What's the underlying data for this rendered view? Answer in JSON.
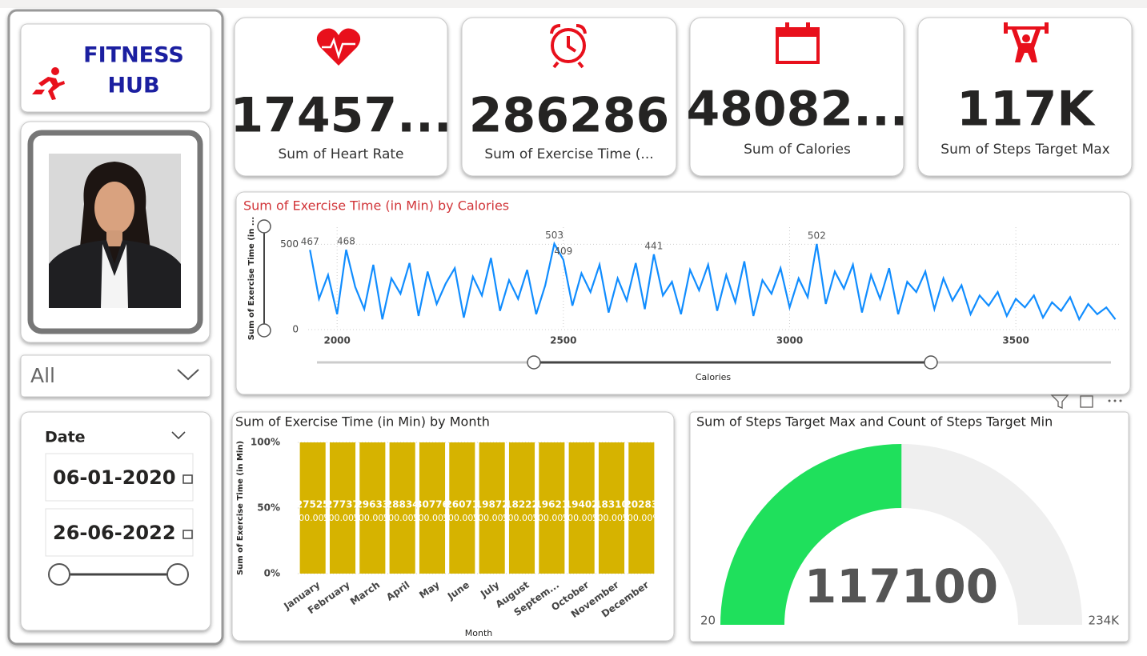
{
  "brand": {
    "line1": "FITNESS",
    "line2": "HUB"
  },
  "filter": {
    "selected": "All"
  },
  "date_slicer": {
    "label": "Date",
    "start": "06-01-2020",
    "end": "26-06-2022"
  },
  "kpis": [
    {
      "value": "17457...",
      "label": "Sum of Heart Rate"
    },
    {
      "value": "286286",
      "label": "Sum of Exercise Time (..."
    },
    {
      "value": "48082...",
      "label": "Sum of Calories"
    },
    {
      "value": "117K",
      "label": "Sum of Steps Target Max"
    }
  ],
  "chart_data": [
    {
      "type": "line",
      "title": "Sum of Exercise Time (in Min) by Calories",
      "x_label": "Calories",
      "y_label": "Sum of Exercise Time (in ...",
      "x": [
        1940,
        1960,
        1980,
        2000,
        2020,
        2040,
        2060,
        2080,
        2100,
        2120,
        2140,
        2160,
        2180,
        2200,
        2220,
        2240,
        2260,
        2280,
        2300,
        2320,
        2340,
        2360,
        2380,
        2400,
        2420,
        2440,
        2460,
        2480,
        2500,
        2520,
        2540,
        2560,
        2580,
        2600,
        2620,
        2640,
        2660,
        2680,
        2700,
        2720,
        2740,
        2760,
        2780,
        2800,
        2820,
        2840,
        2860,
        2880,
        2900,
        2920,
        2940,
        2960,
        2980,
        3000,
        3020,
        3040,
        3060,
        3080,
        3100,
        3120,
        3140,
        3160,
        3180,
        3200,
        3220,
        3240,
        3260,
        3280,
        3300,
        3320,
        3340,
        3360,
        3380,
        3400,
        3420,
        3440,
        3460,
        3480,
        3500,
        3520,
        3540,
        3560,
        3580,
        3600,
        3620,
        3640,
        3660,
        3680,
        3700,
        3720
      ],
      "values": [
        467,
        180,
        320,
        90,
        468,
        250,
        120,
        380,
        60,
        300,
        210,
        390,
        80,
        340,
        150,
        270,
        360,
        70,
        310,
        200,
        420,
        110,
        290,
        180,
        350,
        90,
        260,
        503,
        409,
        140,
        330,
        220,
        380,
        100,
        300,
        170,
        390,
        120,
        441,
        200,
        280,
        90,
        350,
        230,
        380,
        110,
        320,
        160,
        400,
        80,
        290,
        210,
        360,
        130,
        300,
        190,
        502,
        150,
        340,
        240,
        380,
        100,
        320,
        180,
        360,
        90,
        280,
        220,
        340,
        120,
        300,
        170,
        260,
        90,
        200,
        140,
        220,
        80,
        180,
        130,
        200,
        70,
        160,
        110,
        190,
        60,
        150,
        90,
        130,
        60
      ],
      "annotations": [
        {
          "x": 1940,
          "value": 467
        },
        {
          "x": 2020,
          "value": 468
        },
        {
          "x": 2480,
          "value": 503
        },
        {
          "x": 2500,
          "value": 409
        },
        {
          "x": 2700,
          "value": 441
        },
        {
          "x": 3060,
          "value": 502
        }
      ],
      "color": "#118dff",
      "title_color": "#d13438",
      "xlim": [
        1936,
        3728
      ],
      "ylim": [
        0,
        600
      ],
      "xticks": [
        2000,
        2500,
        3000,
        3500
      ],
      "yticks": [
        0,
        500
      ],
      "grid": true
    },
    {
      "type": "bar",
      "title": "Sum of Exercise Time (in Min) by Month",
      "x_label": "Month",
      "y_label": "Sum of Exercise Time (in Min)",
      "categories": [
        "January",
        "February",
        "March",
        "April",
        "May",
        "June",
        "July",
        "August",
        "Septem...",
        "October",
        "November",
        "December"
      ],
      "values": [
        100,
        100,
        100,
        100,
        100,
        100,
        100,
        100,
        100,
        100,
        100,
        100
      ],
      "value_labels": [
        "100.00%",
        "100.00%",
        "100.00%",
        "100.00%",
        "100.00%",
        "100.00%",
        "100.00%",
        "100.00%",
        "100.00%",
        "100.00%",
        "100.00%",
        "100.00%"
      ],
      "segment_labels": [
        27525,
        27737,
        29633,
        28834,
        30776,
        26071,
        19872,
        18222,
        19621,
        19402,
        18310,
        20283
      ],
      "color": "#d6b300",
      "ylim": [
        0,
        100
      ],
      "yticks": [
        {
          "value": 0,
          "label": "0%"
        },
        {
          "value": 50,
          "label": "50%"
        },
        {
          "value": 100,
          "label": "100%"
        }
      ],
      "grid": true
    },
    {
      "type": "gauge",
      "title": "Sum of Steps Target Max and Count of Steps Target Min",
      "value": 117100,
      "min": 20,
      "max": {
        "value": 234000,
        "label": "234K"
      },
      "color": "#1fe05c",
      "track_color": "#efefef"
    }
  ]
}
